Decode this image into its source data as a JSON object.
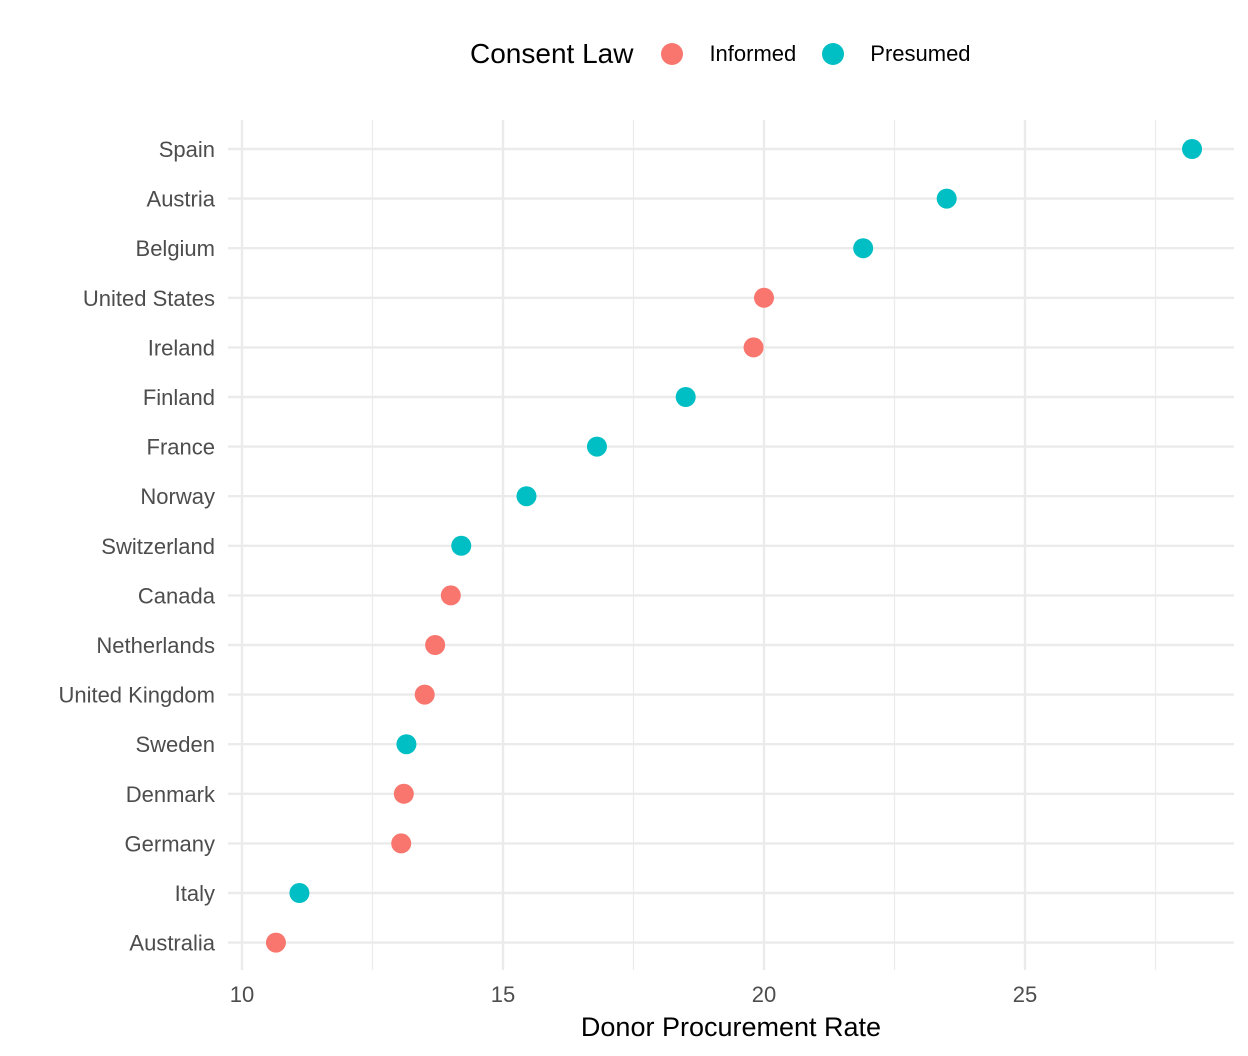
{
  "legend": {
    "title": "Consent Law",
    "items": [
      {
        "label": "Informed",
        "color": "#F8766D"
      },
      {
        "label": "Presumed",
        "color": "#00BFC4"
      }
    ]
  },
  "chart_data": {
    "type": "scatter",
    "title": "",
    "xlabel": "Donor Procurement Rate",
    "ylabel": "",
    "xlim": [
      10,
      28.4
    ],
    "x_ticks": [
      10,
      15,
      20,
      25
    ],
    "grid": true,
    "legend_position": "top",
    "categories": [
      "Spain",
      "Austria",
      "Belgium",
      "United States",
      "Ireland",
      "Finland",
      "France",
      "Norway",
      "Switzerland",
      "Canada",
      "Netherlands",
      "United Kingdom",
      "Sweden",
      "Denmark",
      "Germany",
      "Italy",
      "Australia"
    ],
    "series": [
      {
        "name": "Informed",
        "color": "#F8766D",
        "points": [
          {
            "category": "United States",
            "x": 20.0
          },
          {
            "category": "Ireland",
            "x": 19.8
          },
          {
            "category": "Canada",
            "x": 14.0
          },
          {
            "category": "Netherlands",
            "x": 13.7
          },
          {
            "category": "United Kingdom",
            "x": 13.5
          },
          {
            "category": "Denmark",
            "x": 13.1
          },
          {
            "category": "Germany",
            "x": 13.05
          },
          {
            "category": "Australia",
            "x": 10.65
          }
        ]
      },
      {
        "name": "Presumed",
        "color": "#00BFC4",
        "points": [
          {
            "category": "Spain",
            "x": 28.2
          },
          {
            "category": "Austria",
            "x": 23.5
          },
          {
            "category": "Belgium",
            "x": 21.9
          },
          {
            "category": "Finland",
            "x": 18.5
          },
          {
            "category": "France",
            "x": 16.8
          },
          {
            "category": "Norway",
            "x": 15.45
          },
          {
            "category": "Switzerland",
            "x": 14.2
          },
          {
            "category": "Sweden",
            "x": 13.15
          },
          {
            "category": "Italy",
            "x": 11.1
          }
        ]
      }
    ]
  }
}
